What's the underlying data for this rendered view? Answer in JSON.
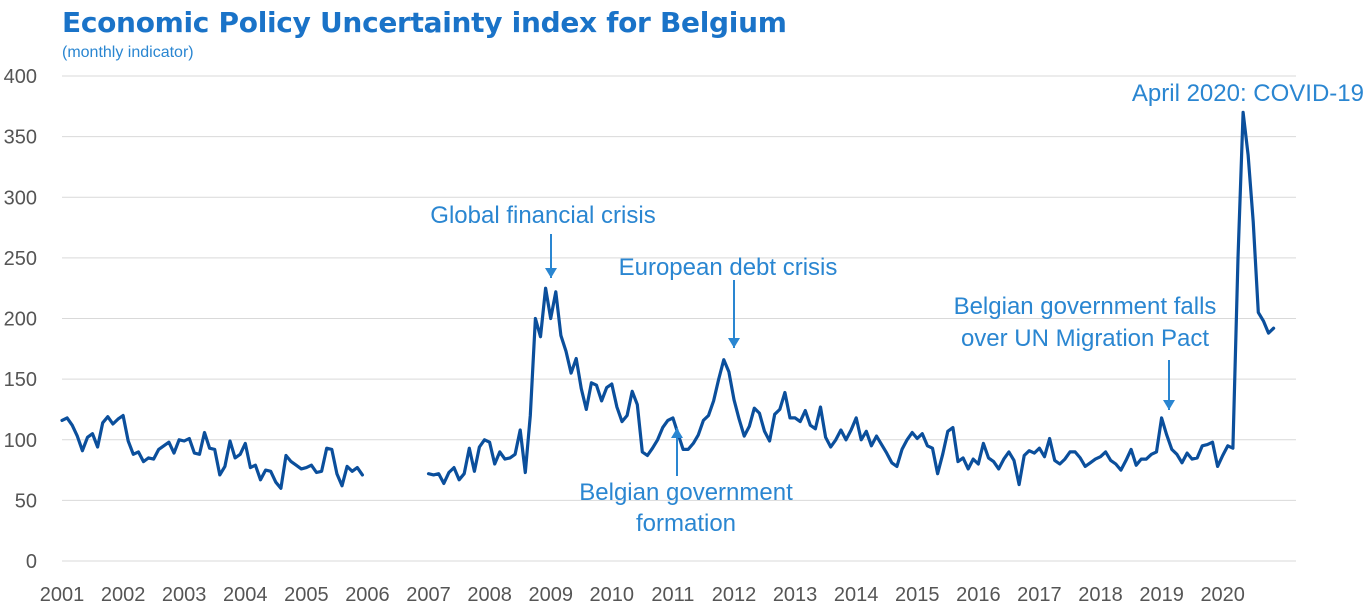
{
  "title": "Economic Policy Uncertainty index for Belgium",
  "subtitle": "(monthly indicator)",
  "colors": {
    "title": "#1a73c8",
    "line": "#0b4f9c",
    "annotation": "#2a86d1",
    "grid": "#d9d9d9"
  },
  "chart_data": {
    "type": "line",
    "title": "Economic Policy Uncertainty index for Belgium",
    "subtitle": "(monthly indicator)",
    "xlabel": "",
    "ylabel": "",
    "ylim": [
      0,
      400
    ],
    "yticks": [
      0,
      50,
      100,
      150,
      200,
      250,
      300,
      350,
      400
    ],
    "xticks": [
      "2001",
      "2002",
      "2003",
      "2004",
      "2005",
      "2006",
      "2007",
      "2008",
      "2009",
      "2010",
      "2011",
      "2012",
      "2013",
      "2014",
      "2015",
      "2016",
      "2017",
      "2018",
      "2019",
      "2020"
    ],
    "grid": true,
    "series": [
      {
        "name": "",
        "segments": [
          {
            "start": "2001-01",
            "values": [
              116,
              118,
              112,
              103,
              91,
              102,
              105,
              94,
              114,
              119,
              113,
              117,
              120,
              99,
              88,
              90,
              82,
              85,
              84,
              92,
              95,
              98,
              89,
              100,
              99,
              101,
              89,
              88,
              106,
              93,
              92,
              71,
              78,
              99,
              85,
              88,
              97,
              77,
              79,
              67,
              75,
              74,
              65,
              60,
              87,
              82,
              79,
              76,
              77,
              79,
              73,
              74,
              93,
              92,
              72,
              62,
              78,
              74,
              77,
              71
            ]
          },
          {
            "start": "2007-01",
            "values": [
              72,
              71,
              72,
              64,
              73,
              77,
              67,
              72,
              93,
              74,
              94,
              100,
              98,
              80,
              90,
              84,
              85,
              88,
              108,
              73,
              120,
              200,
              185,
              225,
              200,
              222,
              186,
              173,
              155,
              167,
              142,
              125,
              147,
              145,
              132,
              143,
              146,
              127,
              115,
              120,
              140,
              129,
              90,
              87,
              93,
              100,
              110,
              116,
              118,
              105,
              92,
              92,
              97,
              104,
              116,
              120,
              132,
              150,
              166,
              156,
              133,
              117,
              103,
              111,
              126,
              122,
              107,
              99,
              121,
              125,
              139,
              118,
              118,
              115,
              124,
              112,
              109,
              127,
              102,
              94,
              100,
              108,
              100,
              108,
              118,
              100,
              107,
              95,
              103,
              96,
              89,
              81,
              78,
              92,
              100,
              106,
              101,
              105,
              95,
              93,
              72,
              88,
              107,
              110,
              82,
              85,
              76,
              84,
              80,
              97,
              85,
              82,
              76,
              84,
              90,
              83,
              63,
              87,
              91,
              89,
              93,
              86,
              101,
              83,
              80,
              84,
              90,
              90,
              85,
              78,
              81,
              84,
              86,
              90,
              83,
              80,
              75,
              83,
              92,
              79,
              84,
              84,
              88,
              90,
              118,
              104,
              92,
              88,
              81,
              89,
              84,
              85,
              95,
              96,
              98,
              78,
              87,
              95,
              93,
              250,
              370,
              335,
              280,
              205,
              198,
              188,
              192
            ]
          }
        ]
      }
    ],
    "annotations": [
      {
        "text": "Global financial crisis",
        "date": "2008-12"
      },
      {
        "text": "European debt crisis",
        "date": "2011-12"
      },
      {
        "text": "Belgian government",
        "text2": "formation",
        "date": "2010-12"
      },
      {
        "text": "Belgian government falls",
        "text2": "over UN Migration Pact",
        "date": "2018-12"
      },
      {
        "text": "April 2020: COVID-19",
        "date": "2020-04"
      }
    ]
  }
}
